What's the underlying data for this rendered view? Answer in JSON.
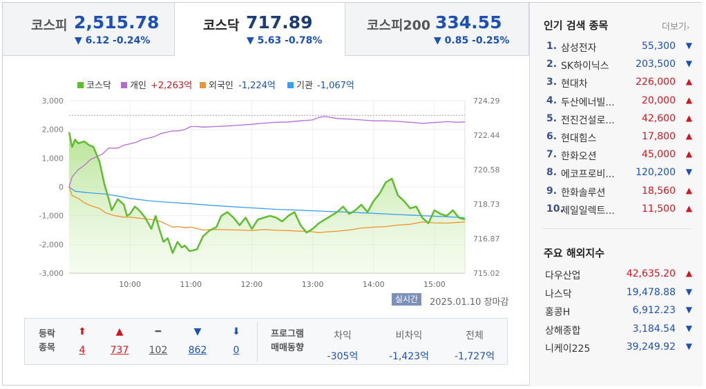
{
  "tabs": [
    {
      "name": "코스피",
      "value": "2,515.78",
      "change": "▼ 6.12 -0.24%",
      "active": false
    },
    {
      "name": "코스닥",
      "value": "717.89",
      "change": "▼ 5.63 -0.78%",
      "active": true
    },
    {
      "name": "코스피200",
      "value": "334.55",
      "change": "▼ 0.85 -0.25%",
      "active": false
    }
  ],
  "legend": [
    {
      "label": "코스닥",
      "value": "",
      "color": "#5cbd2d"
    },
    {
      "label": "개인",
      "value": "+2,263억",
      "color": "#b56ad6"
    },
    {
      "label": "외국인",
      "value": "-1,224억",
      "color": "#f0922f"
    },
    {
      "label": "기관",
      "value": "-1,067억",
      "color": "#3a9df0"
    }
  ],
  "chart_data": {
    "type": "line",
    "x_ticks": [
      "10:00",
      "11:00",
      "12:00",
      "13:00",
      "14:00",
      "15:00"
    ],
    "y_left_ticks": [
      "3,000",
      "2,000",
      "1,000",
      "0",
      "-1,000",
      "-2,000",
      "-3,000"
    ],
    "y_left_range": [
      -3000,
      3000
    ],
    "y_right_ticks": [
      "724.29",
      "722.44",
      "720.58",
      "718.73",
      "716.87",
      "715.02"
    ],
    "y_right_range": [
      715.02,
      724.29
    ],
    "x_range": [
      9.0,
      15.5
    ],
    "series": [
      {
        "name": "코스닥",
        "axis": "right",
        "color": "#5cbd2d",
        "fill": true,
        "x": [
          9.0,
          9.05,
          9.1,
          9.15,
          9.25,
          9.33,
          9.4,
          9.5,
          9.58,
          9.66,
          9.7,
          9.8,
          9.9,
          9.95,
          10.0,
          10.08,
          10.15,
          10.25,
          10.35,
          10.42,
          10.48,
          10.55,
          10.62,
          10.7,
          10.78,
          10.85,
          10.9,
          10.98,
          11.1,
          11.2,
          11.3,
          11.42,
          11.5,
          11.6,
          11.7,
          11.8,
          11.9,
          12.0,
          12.1,
          12.2,
          12.3,
          12.4,
          12.5,
          12.6,
          12.7,
          12.8,
          12.9,
          13.0,
          13.1,
          13.2,
          13.3,
          13.4,
          13.5,
          13.6,
          13.7,
          13.8,
          13.9,
          14.0,
          14.1,
          14.2,
          14.3,
          14.4,
          14.5,
          14.6,
          14.7,
          14.8,
          14.9,
          15.0,
          15.1,
          15.2,
          15.3,
          15.4,
          15.5
        ],
        "y": [
          722.6,
          721.8,
          722.2,
          722.0,
          722.1,
          721.9,
          721.8,
          721.0,
          719.8,
          718.9,
          718.4,
          719.0,
          718.7,
          718.1,
          718.2,
          718.6,
          718.4,
          718.0,
          717.4,
          718.1,
          717.4,
          716.7,
          716.9,
          716.1,
          716.7,
          716.4,
          716.5,
          716.2,
          716.3,
          717.0,
          717.3,
          717.5,
          718.1,
          718.3,
          718.0,
          717.6,
          718.0,
          717.4,
          717.9,
          718.0,
          718.1,
          718.0,
          717.8,
          718.1,
          718.3,
          717.6,
          717.2,
          717.4,
          717.7,
          717.9,
          718.1,
          718.3,
          718.6,
          718.2,
          718.4,
          718.7,
          718.3,
          718.9,
          719.3,
          719.9,
          720.1,
          719.2,
          718.9,
          718.5,
          718.6,
          718.0,
          717.7,
          718.4,
          718.2,
          718.1,
          718.4,
          718.0,
          717.9
        ]
      },
      {
        "name": "개인",
        "axis": "left",
        "color": "#b56ad6",
        "x": [
          9.0,
          9.05,
          9.15,
          9.25,
          9.35,
          9.45,
          9.55,
          9.65,
          9.8,
          9.9,
          10.0,
          10.1,
          10.2,
          10.3,
          10.4,
          10.5,
          10.6,
          10.7,
          10.8,
          10.9,
          11.0,
          11.1,
          11.2,
          11.4,
          11.6,
          11.8,
          12.0,
          12.2,
          12.4,
          12.6,
          12.8,
          13.0,
          13.1,
          13.2,
          13.4,
          13.6,
          13.8,
          14.0,
          14.2,
          14.4,
          14.6,
          14.8,
          15.0,
          15.2,
          15.4,
          15.5
        ],
        "y": [
          0,
          350,
          600,
          750,
          950,
          1050,
          1150,
          1350,
          1350,
          1450,
          1500,
          1550,
          1650,
          1700,
          1750,
          1850,
          1900,
          1950,
          1950,
          2000,
          2100,
          2100,
          2080,
          2100,
          2120,
          2150,
          2180,
          2220,
          2250,
          2260,
          2300,
          2330,
          2420,
          2450,
          2380,
          2360,
          2330,
          2300,
          2300,
          2280,
          2250,
          2210,
          2240,
          2270,
          2250,
          2263
        ]
      },
      {
        "name": "외국인",
        "axis": "left",
        "color": "#f0922f",
        "x": [
          9.0,
          9.05,
          9.15,
          9.25,
          9.35,
          9.5,
          9.6,
          9.75,
          9.9,
          10.0,
          10.2,
          10.4,
          10.5,
          10.6,
          10.7,
          10.8,
          10.9,
          11.0,
          11.1,
          11.2,
          11.4,
          11.6,
          11.8,
          12.0,
          12.2,
          12.4,
          12.6,
          12.8,
          13.0,
          13.1,
          13.2,
          13.4,
          13.6,
          13.8,
          14.0,
          14.2,
          14.4,
          14.6,
          14.8,
          15.0,
          15.2,
          15.4,
          15.5
        ],
        "y": [
          0,
          -300,
          -400,
          -550,
          -650,
          -750,
          -900,
          -1000,
          -1050,
          -1050,
          -1100,
          -1150,
          -1200,
          -1300,
          -1400,
          -1380,
          -1420,
          -1400,
          -1450,
          -1500,
          -1480,
          -1490,
          -1500,
          -1520,
          -1480,
          -1510,
          -1520,
          -1540,
          -1560,
          -1590,
          -1570,
          -1540,
          -1500,
          -1430,
          -1400,
          -1380,
          -1330,
          -1300,
          -1220,
          -1250,
          -1260,
          -1230,
          -1224
        ]
      },
      {
        "name": "기관",
        "axis": "left",
        "color": "#3a9df0",
        "x": [
          9.0,
          9.1,
          9.3,
          9.6,
          9.8,
          10.0,
          10.3,
          10.6,
          10.9,
          11.2,
          11.6,
          12.0,
          12.4,
          12.8,
          13.2,
          13.6,
          14.0,
          14.4,
          14.8,
          15.2,
          15.5
        ],
        "y": [
          0,
          -150,
          -200,
          -250,
          -320,
          -400,
          -480,
          -530,
          -570,
          -620,
          -680,
          -730,
          -780,
          -810,
          -850,
          -880,
          -920,
          -960,
          -1000,
          -1040,
          -1067
        ]
      }
    ],
    "ref_line_right": 723.5
  },
  "status": {
    "realtime": "실시간",
    "date": "2025.01.10 장마감"
  },
  "breadth": {
    "row1": "등락",
    "row2": "종목",
    "items": [
      {
        "icon": "⬆",
        "count": "4",
        "cls": "up"
      },
      {
        "icon": "▲",
        "count": "737",
        "cls": "up"
      },
      {
        "icon": "━",
        "count": "102",
        "cls": "flat"
      },
      {
        "icon": "▼",
        "count": "862",
        "cls": "dn"
      },
      {
        "icon": "⬇",
        "count": "0",
        "cls": "dn"
      }
    ]
  },
  "program": {
    "label1": "프로그램",
    "label2": "매매동향",
    "cols": [
      {
        "head": "차익",
        "value": "-305억"
      },
      {
        "head": "비차익",
        "value": "-1,423억"
      },
      {
        "head": "전체",
        "value": "-1,727억"
      }
    ]
  },
  "popular": {
    "title": "인기 검색 종목",
    "more": "더보기",
    "items": [
      {
        "rank": "1.",
        "name": "삼성전자",
        "price": "55,300",
        "dir": "dn"
      },
      {
        "rank": "2.",
        "name": "SK하이닉스",
        "price": "203,500",
        "dir": "dn"
      },
      {
        "rank": "3.",
        "name": "현대차",
        "price": "226,000",
        "dir": "up"
      },
      {
        "rank": "4.",
        "name": "두산에너빌...",
        "price": "20,000",
        "dir": "up"
      },
      {
        "rank": "5.",
        "name": "전진건설로...",
        "price": "42,600",
        "dir": "up"
      },
      {
        "rank": "6.",
        "name": "현대힘스",
        "price": "17,800",
        "dir": "up"
      },
      {
        "rank": "7.",
        "name": "한화오션",
        "price": "45,000",
        "dir": "up"
      },
      {
        "rank": "8.",
        "name": "에코프로비...",
        "price": "120,200",
        "dir": "dn"
      },
      {
        "rank": "9.",
        "name": "한화솔루션",
        "price": "18,560",
        "dir": "up"
      },
      {
        "rank": "10.",
        "name": "제일일렉트...",
        "price": "11,500",
        "dir": "up"
      }
    ]
  },
  "overseas": {
    "title": "주요 해외지수",
    "items": [
      {
        "name": "다우산업",
        "price": "42,635.20",
        "dir": "up"
      },
      {
        "name": "나스닥",
        "price": "19,478.88",
        "dir": "dn"
      },
      {
        "name": "홍콩H",
        "price": "6,912.23",
        "dir": "dn"
      },
      {
        "name": "상해종합",
        "price": "3,184.54",
        "dir": "dn"
      },
      {
        "name": "니케이225",
        "price": "39,249.92",
        "dir": "dn"
      }
    ]
  }
}
